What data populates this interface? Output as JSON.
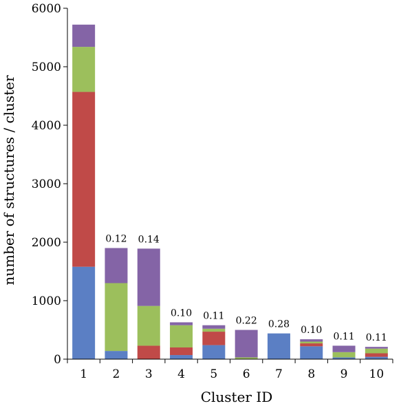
{
  "chart_data": {
    "type": "bar",
    "stacked": true,
    "xlabel": "Cluster ID",
    "ylabel": "number of structures / cluster",
    "ylim": [
      0,
      6000
    ],
    "yticks": [
      "0",
      "1000",
      "2000",
      "3000",
      "4000",
      "5000",
      "6000"
    ],
    "categories": [
      "1",
      "2",
      "3",
      "4",
      "5",
      "6",
      "7",
      "8",
      "9",
      "10"
    ],
    "colors": [
      "#5b7fc4",
      "#c04a48",
      "#9cbf5c",
      "#8464a6"
    ],
    "series": [
      {
        "values": [
          1580,
          140,
          0,
          70,
          240,
          0,
          440,
          220,
          30,
          40
        ]
      },
      {
        "values": [
          2990,
          0,
          230,
          130,
          230,
          0,
          0,
          50,
          0,
          60
        ]
      },
      {
        "values": [
          770,
          1160,
          680,
          380,
          50,
          30,
          0,
          30,
          90,
          80
        ]
      },
      {
        "values": [
          380,
          600,
          980,
          50,
          60,
          470,
          0,
          40,
          110,
          30
        ]
      }
    ],
    "annotations": [
      "",
      "0.12",
      "0.14",
      "0.10",
      "0.11",
      "0.22",
      "0.28",
      "0.10",
      "0.11",
      "0.11"
    ]
  }
}
